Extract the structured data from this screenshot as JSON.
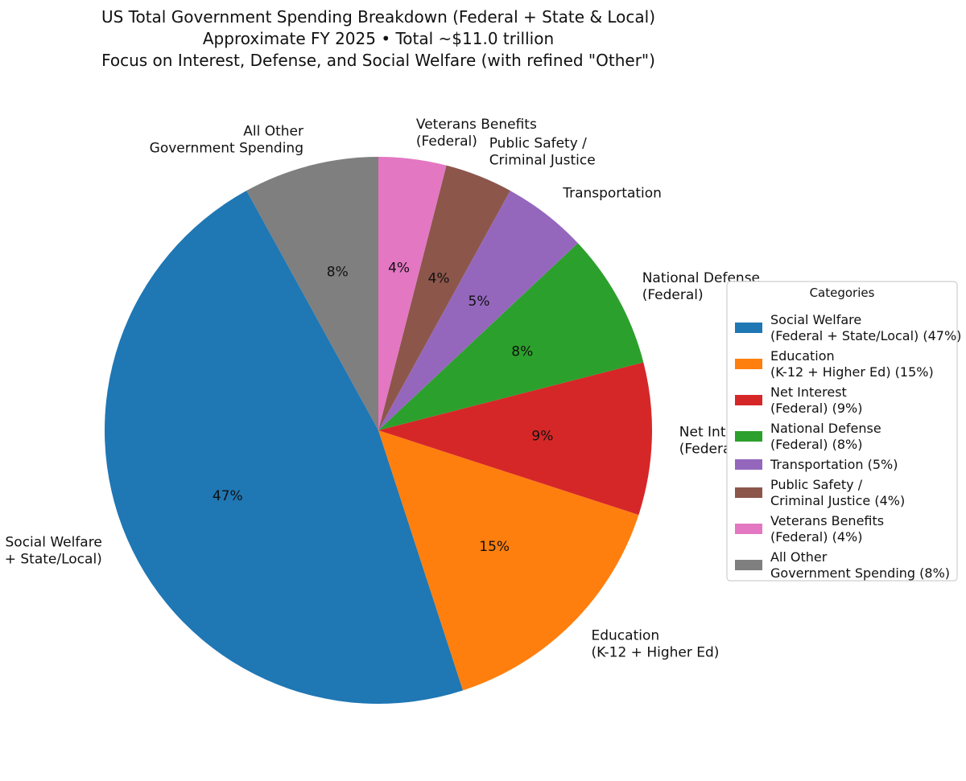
{
  "chart_data": {
    "type": "pie",
    "title_lines": [
      "US Total Government Spending Breakdown (Federal + State & Local)",
      "Approximate FY 2025 • Total ~$11.0 trillion",
      "Focus on Interest, Defense, and Social Welfare (with refined \"Other\")"
    ],
    "legend_title": "Categories",
    "legend_placement": "right",
    "start_angle_deg": 90,
    "direction": "counterclockwise",
    "slices": [
      {
        "id": "all-other",
        "value": 8,
        "pct_label": "8%",
        "color": "#7f7f7f",
        "outer_label": [
          "All Other",
          "Government Spending"
        ],
        "legend_lines": [
          "All Other",
          "Government Spending (8%)"
        ]
      },
      {
        "id": "social-welfare",
        "value": 47,
        "pct_label": "47%",
        "color": "#1f77b4",
        "outer_label": [
          "Social Welfare",
          "(Federal + State/Local)"
        ],
        "legend_lines": [
          "Social Welfare",
          "(Federal + State/Local) (47%)"
        ]
      },
      {
        "id": "education",
        "value": 15,
        "pct_label": "15%",
        "color": "#ff7f0e",
        "outer_label": [
          "Education",
          "(K-12 + Higher Ed)"
        ],
        "legend_lines": [
          "Education",
          "(K-12 + Higher Ed) (15%)"
        ]
      },
      {
        "id": "net-interest",
        "value": 9,
        "pct_label": "9%",
        "color": "#d62728",
        "outer_label": [
          "Net Interest",
          "(Federal)"
        ],
        "legend_lines": [
          "Net Interest",
          "(Federal) (9%)"
        ]
      },
      {
        "id": "national-defense",
        "value": 8,
        "pct_label": "8%",
        "color": "#2ca02c",
        "outer_label": [
          "National Defense",
          "(Federal)"
        ],
        "legend_lines": [
          "National Defense",
          "(Federal) (8%)"
        ]
      },
      {
        "id": "transportation",
        "value": 5,
        "pct_label": "5%",
        "color": "#9467bd",
        "outer_label": [
          "Transportation"
        ],
        "legend_lines": [
          "Transportation (5%)"
        ]
      },
      {
        "id": "public-safety",
        "value": 4,
        "pct_label": "4%",
        "color": "#8c564b",
        "outer_label": [
          "Public Safety /",
          "Criminal Justice"
        ],
        "legend_lines": [
          "Public Safety /",
          "Criminal Justice (4%)"
        ]
      },
      {
        "id": "veterans-benefits",
        "value": 4,
        "pct_label": "4%",
        "color": "#e377c2",
        "outer_label": [
          "Veterans Benefits",
          "(Federal)"
        ],
        "legend_lines": [
          "Veterans Benefits",
          "(Federal) (4%)"
        ]
      }
    ],
    "legend_order": [
      "social-welfare",
      "education",
      "net-interest",
      "national-defense",
      "transportation",
      "public-safety",
      "veterans-benefits",
      "all-other"
    ]
  }
}
